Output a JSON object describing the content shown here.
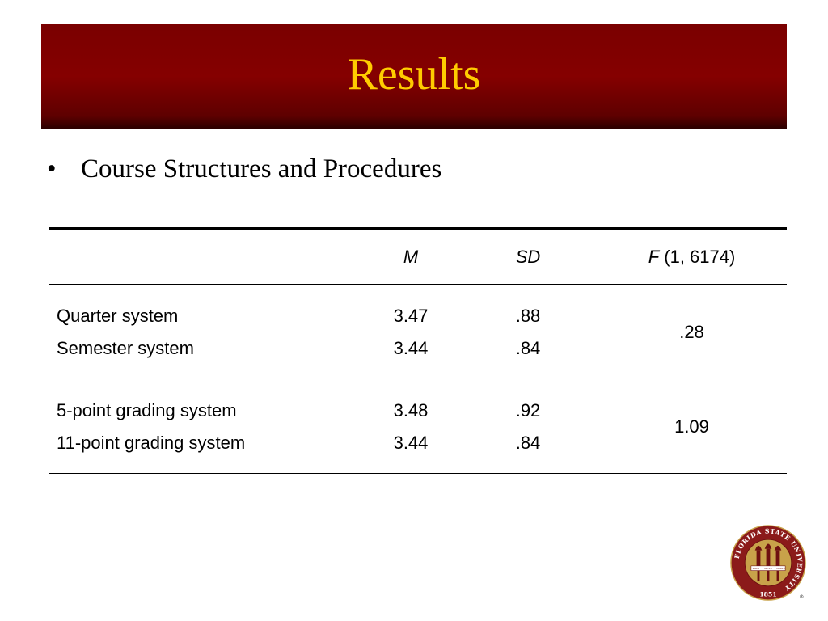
{
  "slide": {
    "title": "Results",
    "bullet": "•",
    "bullet_text": "Course Structures and Procedures"
  },
  "table": {
    "headers": {
      "m": "M",
      "sd": "SD",
      "f_symbol": "F",
      "f_df": " (1, 6174)"
    },
    "groups": [
      {
        "rows": [
          {
            "label": "Quarter system",
            "m": "3.47",
            "sd": ".88"
          },
          {
            "label": "Semester system",
            "m": "3.44",
            "sd": ".84"
          }
        ],
        "f": ".28"
      },
      {
        "rows": [
          {
            "label": "5-point grading system",
            "m": "3.48",
            "sd": ".92"
          },
          {
            "label": "11-point grading system",
            "m": "3.44",
            "sd": ".84"
          }
        ],
        "f": "1.09"
      }
    ]
  },
  "seal": {
    "ring_text": "FLORIDA STATE UNIVERSITY",
    "year": "1851",
    "torch_labels": [
      "VIRES",
      "ARTES",
      "MORES"
    ],
    "registered_mark": "®",
    "colors": {
      "garnet": "#8b1a1a",
      "gold": "#c8a24a",
      "banner": "#7a0000",
      "title_text": "#ffcc00"
    }
  }
}
